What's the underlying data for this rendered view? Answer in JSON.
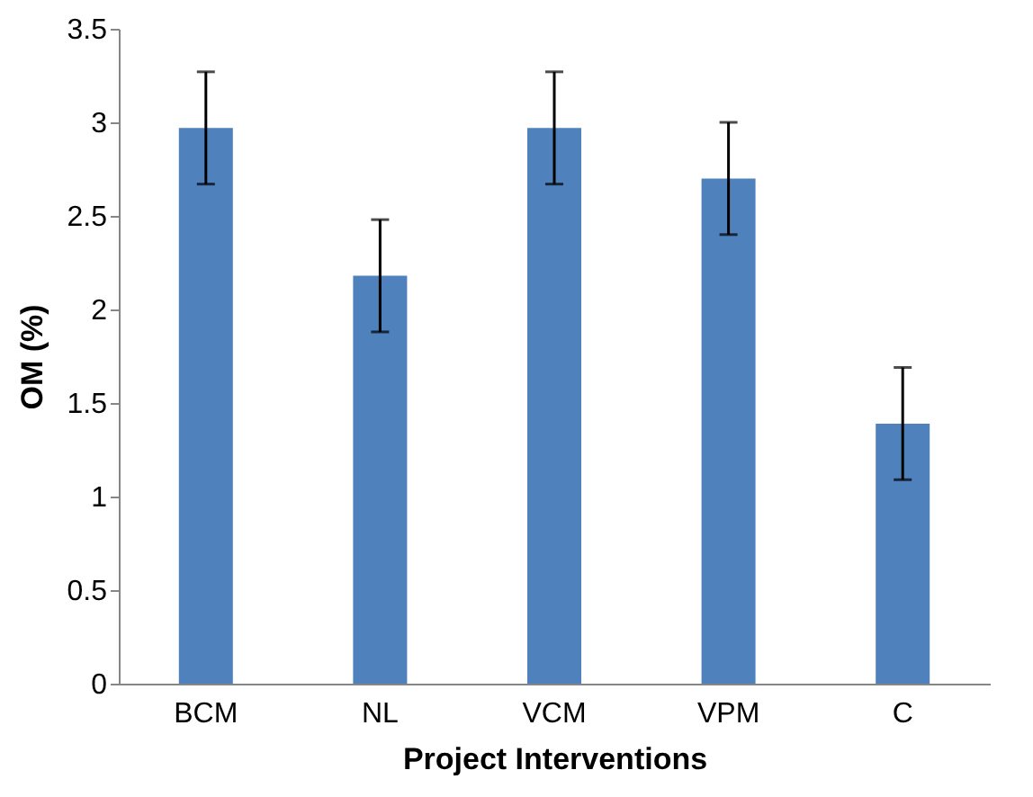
{
  "chart_data": {
    "type": "bar",
    "xlabel": "Project Interventions",
    "ylabel": "OM (%)",
    "categories": [
      "BCM",
      "NL",
      "VCM",
      "VPM",
      "C"
    ],
    "values": [
      2.97,
      2.18,
      2.97,
      2.7,
      1.39
    ],
    "errors": [
      0.3,
      0.3,
      0.3,
      0.3,
      0.3
    ],
    "color": "#4f81bd",
    "ylim": [
      0,
      3.5
    ],
    "yticks": [
      0,
      0.5,
      1,
      1.5,
      2,
      2.5,
      3,
      3.5
    ],
    "grid": false
  }
}
